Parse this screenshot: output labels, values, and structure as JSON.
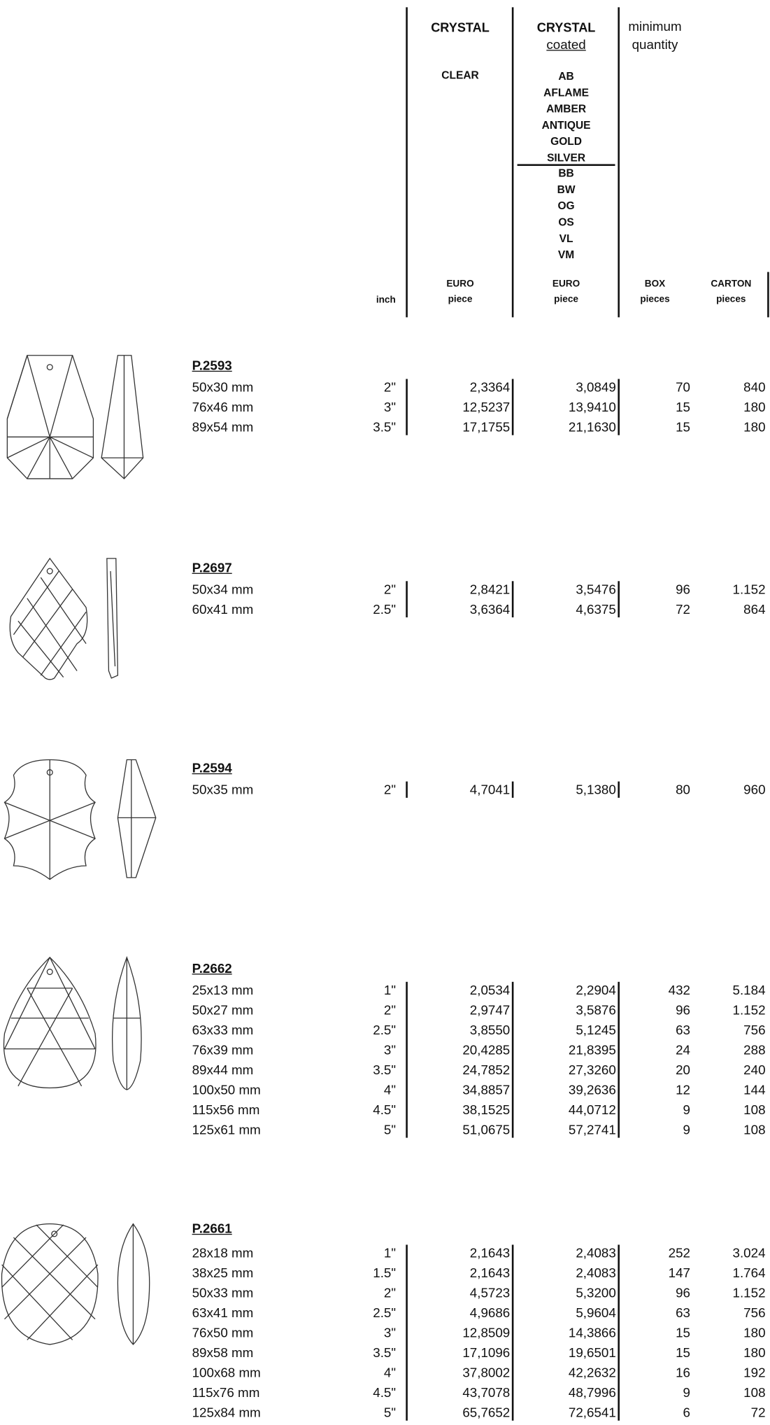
{
  "header": {
    "crystal": {
      "title": "CRYSTAL",
      "variant": "CLEAR"
    },
    "coated": {
      "title": "CRYSTAL",
      "subtitle": "coated",
      "finishes_a": [
        "AB",
        "AFLAME",
        "AMBER",
        "ANTIQUE",
        "GOLD",
        "SILVER"
      ],
      "finishes_b": [
        "BB",
        "BW",
        "OG",
        "OS",
        "VL",
        "VM"
      ]
    },
    "minimum": [
      "minimum",
      "quantity"
    ],
    "units": {
      "inch": "inch",
      "clear": [
        "EURO",
        "piece"
      ],
      "coated": [
        "EURO",
        "piece"
      ],
      "box": [
        "BOX",
        "pieces"
      ],
      "carton": [
        "CARTON",
        "pieces"
      ]
    }
  },
  "products": [
    {
      "code": "P.2593",
      "rows": [
        [
          "50x30 mm",
          "2\"",
          "2,3364",
          "3,0849",
          "70",
          "840"
        ],
        [
          "76x46 mm",
          "3\"",
          "12,5237",
          "13,9410",
          "15",
          "180"
        ],
        [
          "89x54 mm",
          "3.5\"",
          "17,1755",
          "21,1630",
          "15",
          "180"
        ]
      ]
    },
    {
      "code": "P.2697",
      "rows": [
        [
          "50x34 mm",
          "2\"",
          "2,8421",
          "3,5476",
          "96",
          "1.152"
        ],
        [
          "60x41 mm",
          "2.5\"",
          "3,6364",
          "4,6375",
          "72",
          "864"
        ]
      ]
    },
    {
      "code": "P.2594",
      "rows": [
        [
          "50x35 mm",
          "2\"",
          "4,7041",
          "5,1380",
          "80",
          "960"
        ]
      ]
    },
    {
      "code": "P.2662",
      "rows": [
        [
          "25x13 mm",
          "1\"",
          "2,0534",
          "2,2904",
          "432",
          "5.184"
        ],
        [
          "50x27 mm",
          "2\"",
          "2,9747",
          "3,5876",
          "96",
          "1.152"
        ],
        [
          "63x33 mm",
          "2.5\"",
          "3,8550",
          "5,1245",
          "63",
          "756"
        ],
        [
          "76x39 mm",
          "3\"",
          "20,4285",
          "21,8395",
          "24",
          "288"
        ],
        [
          "89x44 mm",
          "3.5\"",
          "24,7852",
          "27,3260",
          "20",
          "240"
        ],
        [
          "100x50 mm",
          "4\"",
          "34,8857",
          "39,2636",
          "12",
          "144"
        ],
        [
          "115x56 mm",
          "4.5\"",
          "38,1525",
          "44,0712",
          "9",
          "108"
        ],
        [
          "125x61 mm",
          "5\"",
          "51,0675",
          "57,2741",
          "9",
          "108"
        ]
      ]
    },
    {
      "code": "P.2661",
      "rows": [
        [
          "28x18 mm",
          "1\"",
          "2,1643",
          "2,4083",
          "252",
          "3.024"
        ],
        [
          "38x25 mm",
          "1.5\"",
          "2,1643",
          "2,4083",
          "147",
          "1.764"
        ],
        [
          "50x33 mm",
          "2\"",
          "4,5723",
          "5,3200",
          "96",
          "1.152"
        ],
        [
          "63x41 mm",
          "2.5\"",
          "4,9686",
          "5,9604",
          "63",
          "756"
        ],
        [
          "76x50 mm",
          "3\"",
          "12,8509",
          "14,3866",
          "15",
          "180"
        ],
        [
          "89x58 mm",
          "3.5\"",
          "17,1096",
          "19,6501",
          "15",
          "180"
        ],
        [
          "100x68 mm",
          "4\"",
          "37,8002",
          "42,2632",
          "16",
          "192"
        ],
        [
          "115x76 mm",
          "4.5\"",
          "43,7078",
          "48,7996",
          "9",
          "108"
        ],
        [
          "125x84 mm",
          "5\"",
          "65,7652",
          "72,6541",
          "6",
          "72"
        ]
      ]
    }
  ]
}
